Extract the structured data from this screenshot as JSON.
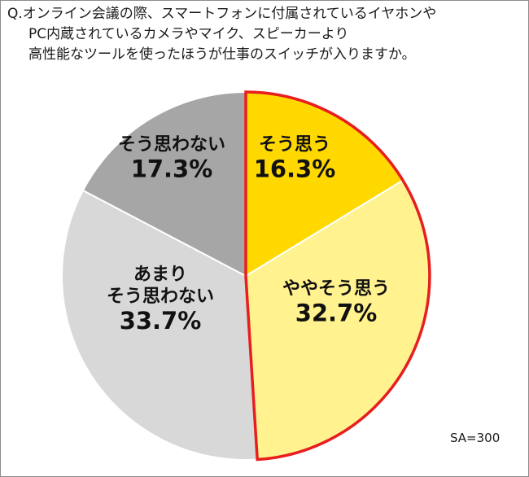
{
  "question": {
    "lines": [
      "Q.オンライン会議の際、スマートフォンに付属されているイヤホンや",
      "PC内蔵されているカメラやマイク、スピーカーより",
      "高性能なツールを使ったほうが仕事のスイッチが入りますか。"
    ]
  },
  "note": "SA=300",
  "colors": {
    "agree": "#ffd800",
    "somewhat_agree": "#fff28f",
    "somewhat_disagree": "#d8d8d8",
    "disagree": "#a6a6a6",
    "highlight_border": "#e81e1e",
    "separator": "#ffffff"
  },
  "chart_data": {
    "type": "pie",
    "start_angle_deg": 0,
    "direction": "clockwise",
    "highlight": [
      "そう思う",
      "ややそう思う"
    ],
    "slices": [
      {
        "key": "agree",
        "label_lines": [
          "そう思う"
        ],
        "value": 16.3,
        "value_label": "16.3%",
        "color": "#ffd800"
      },
      {
        "key": "somewhat_agree",
        "label_lines": [
          "ややそう思う"
        ],
        "value": 32.7,
        "value_label": "32.7%",
        "color": "#fff28f"
      },
      {
        "key": "somewhat_disagree",
        "label_lines": [
          "あまり",
          "そう思わない"
        ],
        "value": 33.7,
        "value_label": "33.7%",
        "color": "#d8d8d8"
      },
      {
        "key": "disagree",
        "label_lines": [
          "そう思わない"
        ],
        "value": 17.3,
        "value_label": "17.3%",
        "color": "#a6a6a6"
      }
    ]
  }
}
